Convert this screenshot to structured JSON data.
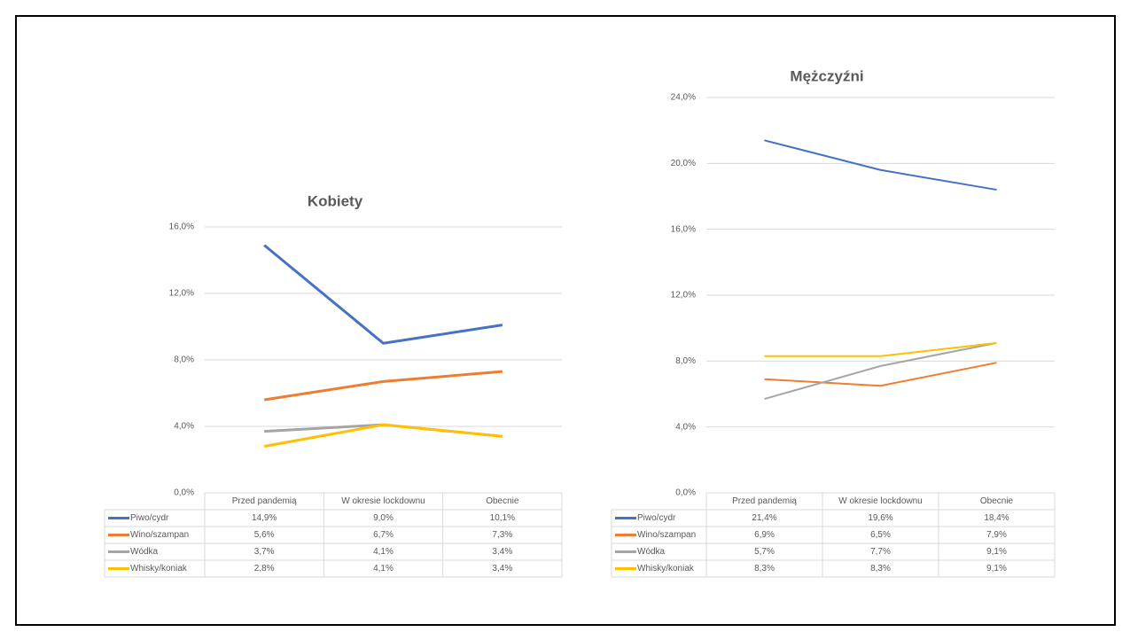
{
  "chart_data": [
    {
      "type": "line",
      "title": "Kobiety",
      "categories": [
        "Przed pandemią",
        "W okresie lockdownu",
        "Obecnie"
      ],
      "series": [
        {
          "name": "Piwo/cydr",
          "color": "#4472c4",
          "values": [
            14.9,
            9.0,
            10.1
          ],
          "value_labels": [
            "14,9%",
            "9,0%",
            "10,1%"
          ]
        },
        {
          "name": "Wino/szampan",
          "color": "#ed7d31",
          "values": [
            5.6,
            6.7,
            7.3
          ],
          "value_labels": [
            "5,6%",
            "6,7%",
            "7,3%"
          ]
        },
        {
          "name": "Wódka",
          "color": "#a5a5a5",
          "values": [
            3.7,
            4.1,
            3.4
          ],
          "value_labels": [
            "3,7%",
            "4,1%",
            "3,4%"
          ]
        },
        {
          "name": "Whisky/koniak",
          "color": "#ffc000",
          "values": [
            2.8,
            4.1,
            3.4
          ],
          "value_labels": [
            "2,8%",
            "4,1%",
            "3,4%"
          ]
        }
      ],
      "ylim": [
        0,
        16
      ],
      "yticks": [
        {
          "value": 0,
          "label": "0,0%"
        },
        {
          "value": 4,
          "label": "4,0%"
        },
        {
          "value": 8,
          "label": "8,0%"
        },
        {
          "value": 12,
          "label": "12,0%"
        },
        {
          "value": 16,
          "label": "16,0%"
        }
      ],
      "grid": true
    },
    {
      "type": "line",
      "title": "Mężczyźni",
      "categories": [
        "Przed pandemią",
        "W okresie lockdownu",
        "Obecnie"
      ],
      "series": [
        {
          "name": "Piwo/cydr",
          "color": "#4472c4",
          "values": [
            21.4,
            19.6,
            18.4
          ],
          "value_labels": [
            "21,4%",
            "19,6%",
            "18,4%"
          ]
        },
        {
          "name": "Wino/szampan",
          "color": "#ed7d31",
          "values": [
            6.9,
            6.5,
            7.9
          ],
          "value_labels": [
            "6,9%",
            "6,5%",
            "7,9%"
          ]
        },
        {
          "name": "Wódka",
          "color": "#a5a5a5",
          "values": [
            5.7,
            7.7,
            9.1
          ],
          "value_labels": [
            "5,7%",
            "7,7%",
            "9,1%"
          ]
        },
        {
          "name": "Whisky/koniak",
          "color": "#ffc000",
          "values": [
            8.3,
            8.3,
            9.1
          ],
          "value_labels": [
            "8,3%",
            "8,3%",
            "9,1%"
          ]
        }
      ],
      "ylim": [
        0,
        24
      ],
      "yticks": [
        {
          "value": 0,
          "label": "0,0%"
        },
        {
          "value": 4,
          "label": "4,0%"
        },
        {
          "value": 8,
          "label": "8,0%"
        },
        {
          "value": 12,
          "label": "12,0%"
        },
        {
          "value": 16,
          "label": "16,0%"
        },
        {
          "value": 20,
          "label": "20,0%"
        },
        {
          "value": 24,
          "label": "24,0%"
        }
      ],
      "grid": true
    }
  ]
}
